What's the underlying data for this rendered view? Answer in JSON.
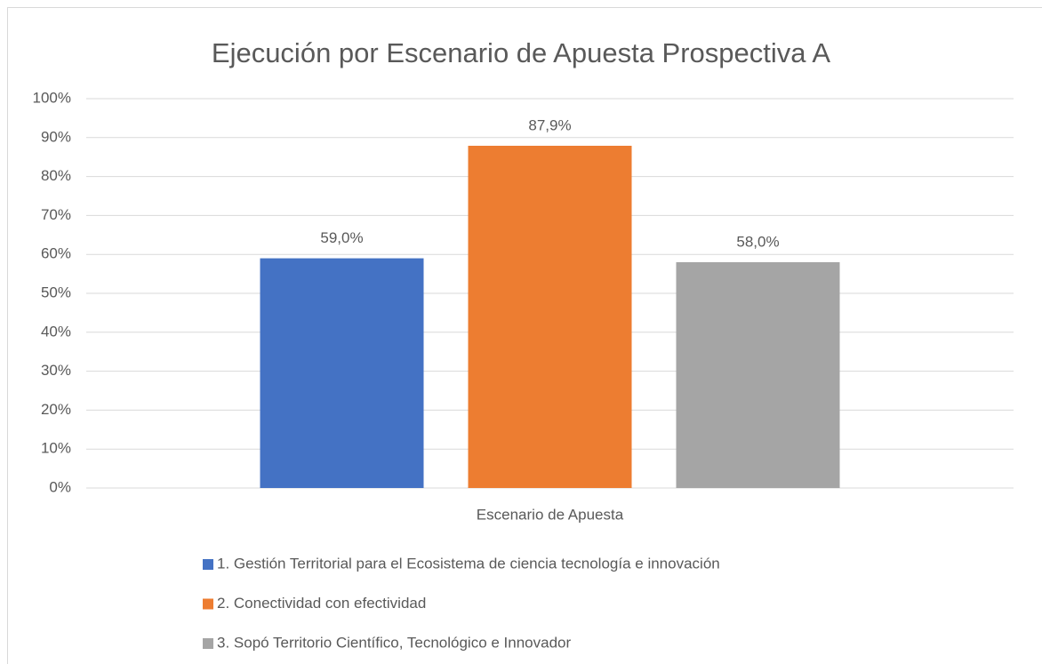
{
  "chart_data": {
    "type": "bar",
    "title": "Ejecución por Escenario de Apuesta Prospectiva A",
    "categories": [
      "Escenario de Apuesta"
    ],
    "series": [
      {
        "name": "1. Gestión Territorial para el Ecosistema de ciencia tecnología e innovación",
        "color": "#4472c4",
        "values": [
          59.0
        ],
        "value_labels": [
          "59,0%"
        ]
      },
      {
        "name": "2. Conectividad con efectividad",
        "color": "#ed7d31",
        "values": [
          87.9
        ],
        "value_labels": [
          "87,9%"
        ]
      },
      {
        "name": "3. Sopó Territorio Científico, Tecnológico e Innovador",
        "color": "#a5a5a5",
        "values": [
          58.0
        ],
        "value_labels": [
          "58,0%"
        ]
      }
    ],
    "ylim": [
      0,
      100
    ],
    "yticks": [
      {
        "value": 0,
        "label": "0%"
      },
      {
        "value": 10,
        "label": "10%"
      },
      {
        "value": 20,
        "label": "20%"
      },
      {
        "value": 30,
        "label": "30%"
      },
      {
        "value": 40,
        "label": "40%"
      },
      {
        "value": 50,
        "label": "50%"
      },
      {
        "value": 60,
        "label": "60%"
      },
      {
        "value": 70,
        "label": "70%"
      },
      {
        "value": 80,
        "label": "80%"
      },
      {
        "value": 90,
        "label": "90%"
      },
      {
        "value": 100,
        "label": "100%"
      }
    ],
    "grid": true,
    "legend": "bottom"
  }
}
